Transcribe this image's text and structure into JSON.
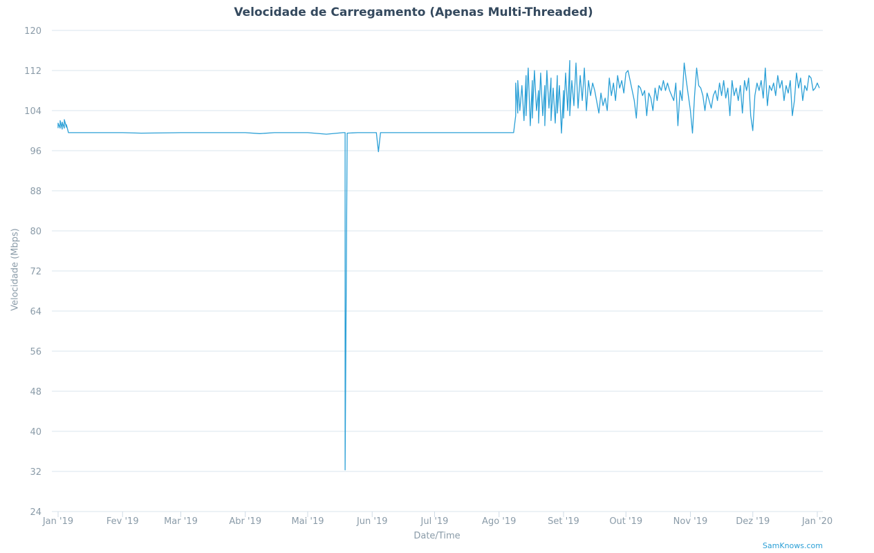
{
  "chart_data": {
    "type": "line",
    "title": "Velocidade de Carregamento (Apenas Multi-Threaded)",
    "xlabel": "Date/Time",
    "ylabel": "Velocidade (Mbps)",
    "ylim": [
      24,
      120
    ],
    "yticks": [
      24,
      32,
      40,
      48,
      56,
      64,
      72,
      80,
      88,
      96,
      104,
      112,
      120
    ],
    "xlim": [
      "2019-01-01",
      "2020-01-02"
    ],
    "xticks": [
      {
        "date": "2019-01-01",
        "label": "Jan '19"
      },
      {
        "date": "2019-02-01",
        "label": "Fev '19"
      },
      {
        "date": "2019-03-01",
        "label": "Mar '19"
      },
      {
        "date": "2019-04-01",
        "label": "Abr '19"
      },
      {
        "date": "2019-05-01",
        "label": "Mai '19"
      },
      {
        "date": "2019-06-01",
        "label": "Jun '19"
      },
      {
        "date": "2019-07-01",
        "label": "Jul '19"
      },
      {
        "date": "2019-08-01",
        "label": "Ago '19"
      },
      {
        "date": "2019-09-01",
        "label": "Set '19"
      },
      {
        "date": "2019-10-01",
        "label": "Out '19"
      },
      {
        "date": "2019-11-01",
        "label": "Nov '19"
      },
      {
        "date": "2019-12-01",
        "label": "Dez '19"
      },
      {
        "date": "2020-01-01",
        "label": "Jan '20"
      }
    ],
    "grid": true,
    "series": [
      {
        "color": "#2a9fd6",
        "points": [
          [
            "2019-01-01",
            100.5
          ],
          [
            "2019-01-01",
            101.5
          ],
          [
            "2019-01-02",
            100.5
          ],
          [
            "2019-01-02",
            102.0
          ],
          [
            "2019-01-03",
            100.3
          ],
          [
            "2019-01-03",
            101.7
          ],
          [
            "2019-01-04",
            100.5
          ],
          [
            "2019-01-04",
            102.2
          ],
          [
            "2019-01-05",
            100.7
          ],
          [
            "2019-01-05",
            101.2
          ],
          [
            "2019-01-06",
            99.6
          ],
          [
            "2019-01-10",
            99.6
          ],
          [
            "2019-01-20",
            99.6
          ],
          [
            "2019-02-01",
            99.6
          ],
          [
            "2019-02-10",
            99.5
          ],
          [
            "2019-03-01",
            99.6
          ],
          [
            "2019-03-20",
            99.6
          ],
          [
            "2019-04-01",
            99.6
          ],
          [
            "2019-04-08",
            99.4
          ],
          [
            "2019-04-15",
            99.6
          ],
          [
            "2019-05-01",
            99.6
          ],
          [
            "2019-05-10",
            99.3
          ],
          [
            "2019-05-18",
            99.6
          ],
          [
            "2019-05-19",
            99.6
          ],
          [
            "2019-05-19",
            32.3
          ],
          [
            "2019-05-20",
            99.5
          ],
          [
            "2019-05-25",
            99.6
          ],
          [
            "2019-06-03",
            99.6
          ],
          [
            "2019-06-04",
            95.8
          ],
          [
            "2019-06-05",
            99.6
          ],
          [
            "2019-06-20",
            99.6
          ],
          [
            "2019-07-01",
            99.6
          ],
          [
            "2019-07-15",
            99.6
          ],
          [
            "2019-08-01",
            99.6
          ],
          [
            "2019-08-08",
            99.6
          ],
          [
            "2019-08-09",
            103.0
          ],
          [
            "2019-08-09",
            109.5
          ],
          [
            "2019-08-10",
            103.5
          ],
          [
            "2019-08-10",
            110.0
          ],
          [
            "2019-08-11",
            104.0
          ],
          [
            "2019-08-12",
            109.0
          ],
          [
            "2019-08-13",
            102.0
          ],
          [
            "2019-08-14",
            111.0
          ],
          [
            "2019-08-14",
            103.0
          ],
          [
            "2019-08-15",
            112.5
          ],
          [
            "2019-08-16",
            101.0
          ],
          [
            "2019-08-17",
            110.0
          ],
          [
            "2019-08-17",
            102.5
          ],
          [
            "2019-08-18",
            112.0
          ],
          [
            "2019-08-19",
            104.0
          ],
          [
            "2019-08-20",
            108.0
          ],
          [
            "2019-08-20",
            101.5
          ],
          [
            "2019-08-21",
            111.5
          ],
          [
            "2019-08-22",
            103.0
          ],
          [
            "2019-08-23",
            109.0
          ],
          [
            "2019-08-23",
            101.0
          ],
          [
            "2019-08-24",
            112.0
          ],
          [
            "2019-08-25",
            104.5
          ],
          [
            "2019-08-26",
            110.5
          ],
          [
            "2019-08-26",
            102.0
          ],
          [
            "2019-08-27",
            108.5
          ],
          [
            "2019-08-28",
            101.5
          ],
          [
            "2019-08-29",
            111.0
          ],
          [
            "2019-08-29",
            103.5
          ],
          [
            "2019-08-30",
            109.0
          ],
          [
            "2019-08-31",
            99.5
          ],
          [
            "2019-09-01",
            108.0
          ],
          [
            "2019-09-01",
            102.5
          ],
          [
            "2019-09-02",
            111.5
          ],
          [
            "2019-09-03",
            104.0
          ],
          [
            "2019-09-04",
            114.0
          ],
          [
            "2019-09-04",
            103.0
          ],
          [
            "2019-09-05",
            110.0
          ],
          [
            "2019-09-06",
            105.0
          ],
          [
            "2019-09-07",
            113.5
          ],
          [
            "2019-09-08",
            104.5
          ],
          [
            "2019-09-09",
            111.0
          ],
          [
            "2019-09-10",
            106.0
          ],
          [
            "2019-09-11",
            112.5
          ],
          [
            "2019-09-12",
            104.0
          ],
          [
            "2019-09-13",
            110.0
          ],
          [
            "2019-09-14",
            107.0
          ],
          [
            "2019-09-15",
            109.5
          ],
          [
            "2019-09-16",
            108.0
          ],
          [
            "2019-09-18",
            103.5
          ],
          [
            "2019-09-19",
            107.5
          ],
          [
            "2019-09-20",
            105.0
          ],
          [
            "2019-09-21",
            106.5
          ],
          [
            "2019-09-22",
            104.0
          ],
          [
            "2019-09-23",
            110.5
          ],
          [
            "2019-09-24",
            107.0
          ],
          [
            "2019-09-25",
            109.5
          ],
          [
            "2019-09-26",
            106.0
          ],
          [
            "2019-09-27",
            111.0
          ],
          [
            "2019-09-28",
            108.5
          ],
          [
            "2019-09-29",
            110.0
          ],
          [
            "2019-09-30",
            107.5
          ],
          [
            "2019-10-01",
            111.5
          ],
          [
            "2019-10-02",
            112.0
          ],
          [
            "2019-10-03",
            110.0
          ],
          [
            "2019-10-04",
            108.0
          ],
          [
            "2019-10-05",
            106.0
          ],
          [
            "2019-10-06",
            102.5
          ],
          [
            "2019-10-07",
            109.0
          ],
          [
            "2019-10-08",
            108.5
          ],
          [
            "2019-10-09",
            107.0
          ],
          [
            "2019-10-10",
            108.0
          ],
          [
            "2019-10-11",
            103.0
          ],
          [
            "2019-10-12",
            107.5
          ],
          [
            "2019-10-13",
            106.5
          ],
          [
            "2019-10-14",
            104.0
          ],
          [
            "2019-10-15",
            108.5
          ],
          [
            "2019-10-16",
            106.0
          ],
          [
            "2019-10-17",
            109.0
          ],
          [
            "2019-10-18",
            108.0
          ],
          [
            "2019-10-19",
            110.0
          ],
          [
            "2019-10-20",
            108.0
          ],
          [
            "2019-10-21",
            109.5
          ],
          [
            "2019-10-22",
            108.0
          ],
          [
            "2019-10-23",
            107.0
          ],
          [
            "2019-10-24",
            106.0
          ],
          [
            "2019-10-25",
            109.5
          ],
          [
            "2019-10-26",
            101.0
          ],
          [
            "2019-10-27",
            108.0
          ],
          [
            "2019-10-28",
            106.0
          ],
          [
            "2019-10-29",
            113.5
          ],
          [
            "2019-10-30",
            110.0
          ],
          [
            "2019-10-31",
            107.0
          ],
          [
            "2019-11-01",
            104.0
          ],
          [
            "2019-11-02",
            99.5
          ],
          [
            "2019-11-03",
            107.0
          ],
          [
            "2019-11-04",
            112.5
          ],
          [
            "2019-11-05",
            109.0
          ],
          [
            "2019-11-06",
            108.5
          ],
          [
            "2019-11-07",
            107.0
          ],
          [
            "2019-11-08",
            104.0
          ],
          [
            "2019-11-09",
            107.5
          ],
          [
            "2019-11-10",
            106.0
          ],
          [
            "2019-11-11",
            104.5
          ],
          [
            "2019-11-12",
            107.0
          ],
          [
            "2019-11-13",
            108.0
          ],
          [
            "2019-11-14",
            106.0
          ],
          [
            "2019-11-15",
            109.5
          ],
          [
            "2019-11-16",
            107.0
          ],
          [
            "2019-11-17",
            110.0
          ],
          [
            "2019-11-18",
            106.5
          ],
          [
            "2019-11-19",
            108.5
          ],
          [
            "2019-11-20",
            103.0
          ],
          [
            "2019-11-21",
            110.0
          ],
          [
            "2019-11-22",
            107.0
          ],
          [
            "2019-11-23",
            108.5
          ],
          [
            "2019-11-24",
            106.0
          ],
          [
            "2019-11-25",
            109.0
          ],
          [
            "2019-11-26",
            103.5
          ],
          [
            "2019-11-27",
            110.0
          ],
          [
            "2019-11-28",
            108.0
          ],
          [
            "2019-11-29",
            110.5
          ],
          [
            "2019-11-30",
            103.0
          ],
          [
            "2019-12-01",
            100.0
          ],
          [
            "2019-12-02",
            107.0
          ],
          [
            "2019-12-03",
            109.5
          ],
          [
            "2019-12-04",
            108.0
          ],
          [
            "2019-12-05",
            110.0
          ],
          [
            "2019-12-06",
            106.5
          ],
          [
            "2019-12-07",
            112.5
          ],
          [
            "2019-12-08",
            105.0
          ],
          [
            "2019-12-09",
            109.0
          ],
          [
            "2019-12-10",
            108.0
          ],
          [
            "2019-12-11",
            109.5
          ],
          [
            "2019-12-12",
            107.0
          ],
          [
            "2019-12-13",
            111.0
          ],
          [
            "2019-12-14",
            108.5
          ],
          [
            "2019-12-15",
            110.0
          ],
          [
            "2019-12-16",
            106.0
          ],
          [
            "2019-12-17",
            109.0
          ],
          [
            "2019-12-18",
            107.5
          ],
          [
            "2019-12-19",
            110.0
          ],
          [
            "2019-12-20",
            103.0
          ],
          [
            "2019-12-21",
            106.0
          ],
          [
            "2019-12-22",
            111.5
          ],
          [
            "2019-12-23",
            108.5
          ],
          [
            "2019-12-24",
            110.5
          ],
          [
            "2019-12-25",
            106.0
          ],
          [
            "2019-12-26",
            109.0
          ],
          [
            "2019-12-27",
            108.0
          ],
          [
            "2019-12-28",
            111.0
          ],
          [
            "2019-12-29",
            110.5
          ],
          [
            "2019-12-30",
            108.0
          ],
          [
            "2019-12-31",
            108.5
          ],
          [
            "2020-01-01",
            109.5
          ],
          [
            "2020-01-02",
            108.5
          ]
        ]
      }
    ]
  },
  "footer": {
    "credit": "SamKnows.com"
  }
}
